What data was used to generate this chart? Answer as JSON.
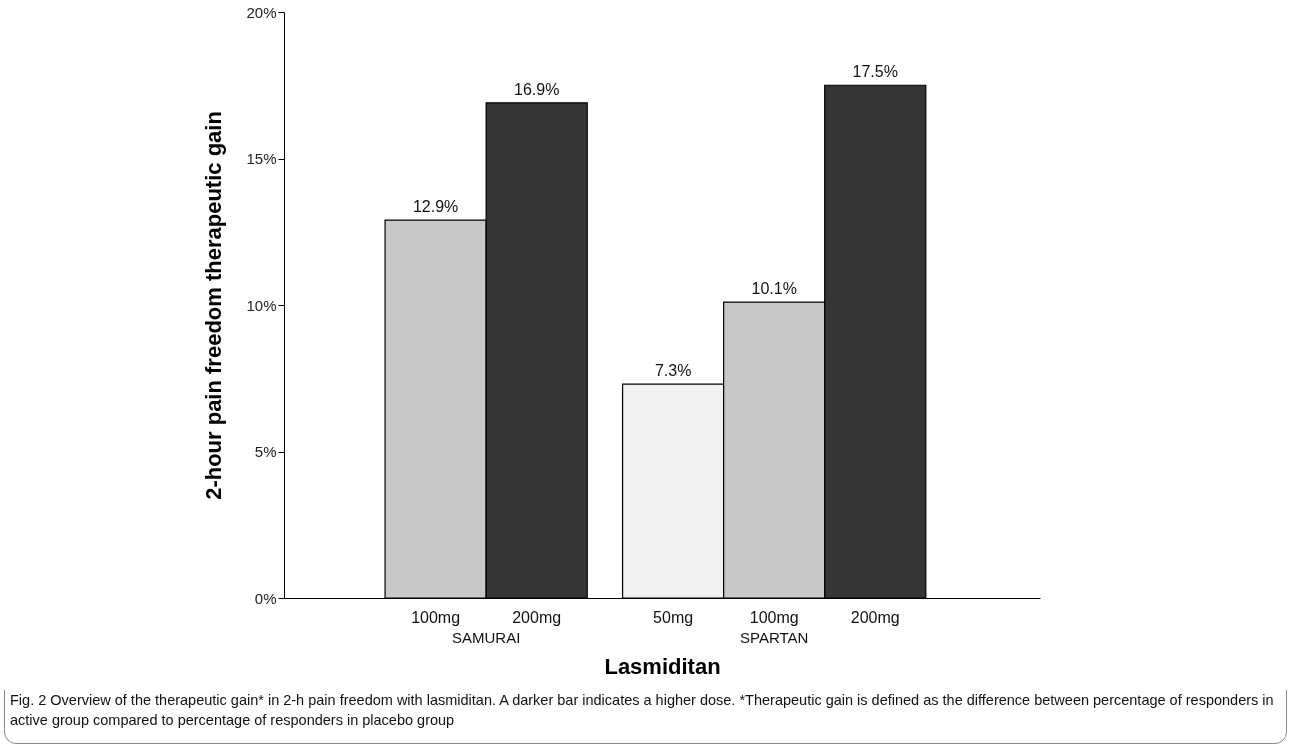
{
  "chart_data": {
    "type": "bar",
    "categories": [
      "100mg",
      "200mg",
      "50mg",
      "100mg",
      "200mg"
    ],
    "values": [
      12.9,
      16.9,
      7.3,
      10.1,
      17.5
    ],
    "colors": [
      "#c8c8c8",
      "#353535",
      "#f0f0f0",
      "#c8c8c8",
      "#353535"
    ],
    "value_labels": [
      "12.9%",
      "16.9%",
      "7.3%",
      "10.1%",
      "17.5%"
    ],
    "xlabel": "Lasmiditan",
    "ylabel": "2-hour pain freedom therapeutic gain",
    "ylim": [
      0,
      20
    ],
    "yticks": [
      {
        "value": 0,
        "label": "0%"
      },
      {
        "value": 5,
        "label": "5%"
      },
      {
        "value": 10,
        "label": "10%"
      },
      {
        "value": 15,
        "label": "15%"
      },
      {
        "value": 20,
        "label": "20%"
      }
    ],
    "grid": false,
    "annotations": [
      "SAMURAI",
      "SPARTAN",
      "Fig. 2 Overview of the therapeutic gain* in 2-h pain freedom with lasmiditan. A darker bar indicates a higher dose. *Therapeutic gain is defined as the difference between percentage of responders in active group compared to percentage of responders in placebo group"
    ]
  }
}
